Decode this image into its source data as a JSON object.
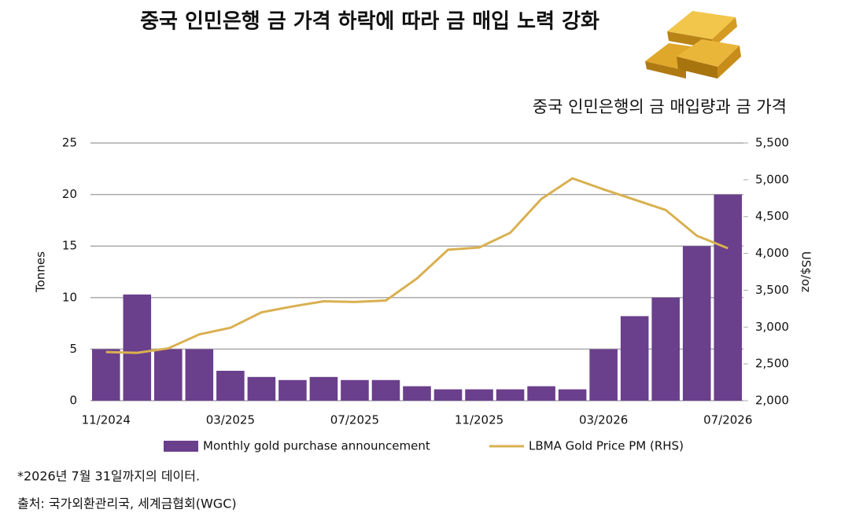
{
  "chart_data": {
    "type": "bar-line",
    "title": "중국 인민은행 금 가격 하락에 따라 금 매입 노력 강화",
    "subtitle": "중국 인민은행의 금 매입량과 금 가격",
    "y_label": "Tonnes",
    "y2_label": "US$/oz",
    "categories": [
      "11/2024",
      null,
      null,
      null,
      "03/2025",
      null,
      null,
      null,
      "07/2025",
      null,
      null,
      null,
      "11/2025",
      null,
      null,
      null,
      "03/2026",
      null,
      null,
      null,
      "07/2026"
    ],
    "series": [
      {
        "name": "Monthly gold purchase announcement",
        "type": "bar",
        "color": "#6a3f8c",
        "values": [
          5,
          10.3,
          5,
          5,
          2.9,
          2.3,
          2,
          2.3,
          2,
          2,
          1.4,
          1.1,
          1.1,
          1.1,
          1.4,
          1.1,
          5,
          8.2,
          10,
          15,
          20
        ]
      },
      {
        "name": "LBMA Gold Price PM (RHS)",
        "type": "line",
        "axis": "y2",
        "color": "#d9b050",
        "values": [
          2660,
          2650,
          2710,
          2900,
          2990,
          3200,
          3280,
          3350,
          3340,
          3360,
          3660,
          4050,
          4080,
          4280,
          4740,
          5020,
          4870,
          4730,
          4590,
          4240,
          4070
        ]
      }
    ],
    "ylim": [
      0,
      25
    ],
    "yticks": [
      0,
      5,
      10,
      15,
      20,
      25
    ],
    "y2lim": [
      2000,
      5500
    ],
    "y2ticks": [
      {
        "value": 2000,
        "label": "2,000"
      },
      {
        "value": 2500,
        "label": "2,500"
      },
      {
        "value": 3000,
        "label": "3,000"
      },
      {
        "value": 3500,
        "label": "3,500"
      },
      {
        "value": 4000,
        "label": "4,000"
      },
      {
        "value": 4500,
        "label": "4,500"
      },
      {
        "value": 5000,
        "label": "5,000"
      },
      {
        "value": 5500,
        "label": "5,500"
      }
    ],
    "grid": true,
    "notes": [
      "*2026년 7월 31일까지의 데이터.",
      "출처: 국가외환관리국, 세계금협회(WGC)"
    ]
  }
}
